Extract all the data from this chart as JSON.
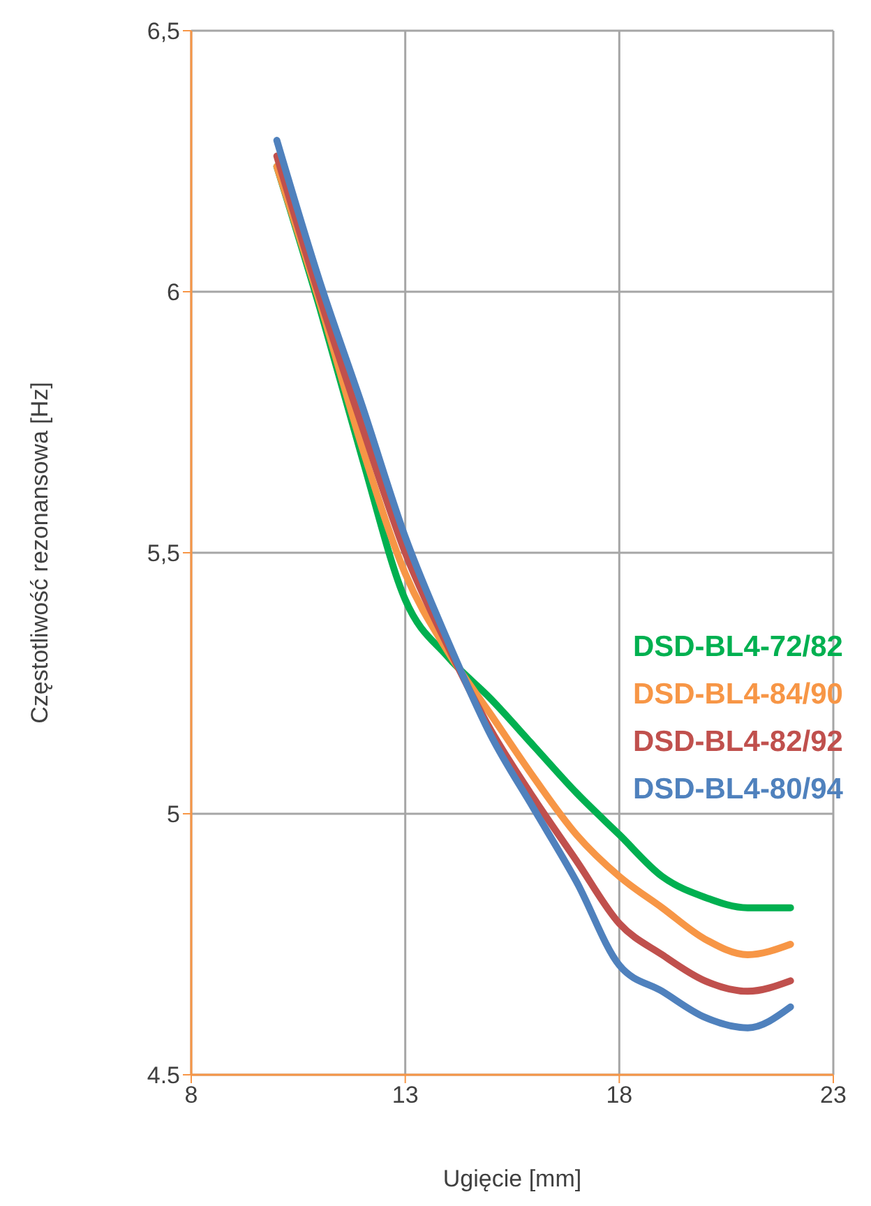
{
  "chart_data": {
    "type": "line",
    "xlabel": "Ugięcie [mm]",
    "ylabel": "Częstotliwość rezonansowa [Hz]",
    "x": [
      10,
      11,
      12,
      13,
      14,
      15,
      16,
      17,
      18,
      19,
      20,
      21,
      22
    ],
    "xlim": [
      8,
      23
    ],
    "xticks": [
      8,
      13,
      18,
      23
    ],
    "ylim": [
      4.5,
      6.5
    ],
    "yticks": [
      4.5,
      {
        "value": 5,
        "label": "5"
      },
      {
        "value": 5.5,
        "label": "5,5"
      },
      {
        "value": 6,
        "label": "6"
      },
      {
        "value": 6.5,
        "label": "6,5"
      }
    ],
    "grid": true,
    "legend": "right",
    "marker": "none",
    "line_style": "solid",
    "series": [
      {
        "name": "DSD-BL4-72/82",
        "color": "#00b050",
        "values": [
          6.24,
          5.97,
          5.68,
          5.41,
          5.3,
          5.22,
          5.13,
          5.04,
          4.96,
          4.88,
          4.84,
          4.82,
          4.82
        ]
      },
      {
        "name": "DSD-BL4-84/90",
        "color": "#f79646",
        "values": [
          6.24,
          5.98,
          5.7,
          5.46,
          5.31,
          5.19,
          5.07,
          4.96,
          4.88,
          4.82,
          4.76,
          4.73,
          4.75
        ]
      },
      {
        "name": "DSD-BL4-82/92",
        "color": "#c0504d",
        "values": [
          6.26,
          5.99,
          5.74,
          5.5,
          5.32,
          5.16,
          5.03,
          4.91,
          4.79,
          4.73,
          4.68,
          4.66,
          4.68
        ]
      },
      {
        "name": "DSD-BL4-80/94",
        "color": "#4f81bd",
        "values": [
          6.29,
          6.02,
          5.78,
          5.53,
          5.33,
          5.15,
          5.01,
          4.87,
          4.71,
          4.66,
          4.61,
          4.59,
          4.63
        ]
      }
    ]
  }
}
